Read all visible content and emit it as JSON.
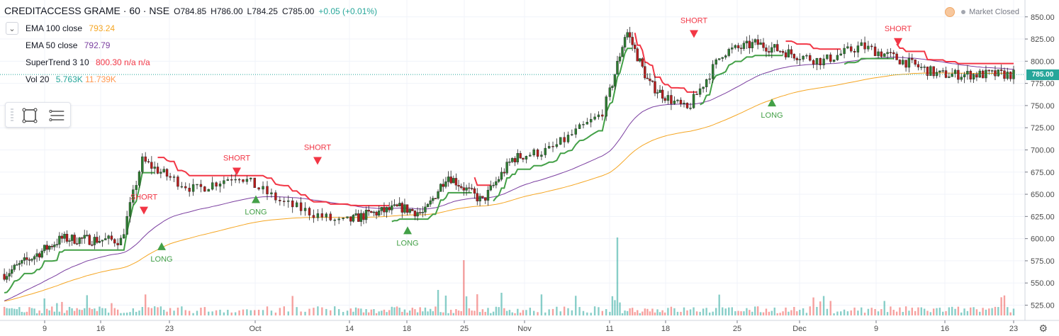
{
  "header": {
    "symbol": "CREDITACCESS GRAME · 60 · NSE",
    "open": "O784.85",
    "high": "H786.00",
    "low": "L784.25",
    "close": "C785.00",
    "change": "+0.05 (+0.01%)"
  },
  "indicators": [
    {
      "name": "EMA 100 close",
      "values": [
        "793.24"
      ],
      "colors": [
        "#f5a623"
      ]
    },
    {
      "name": "EMA 50 close",
      "values": [
        "792.79"
      ],
      "colors": [
        "#7b3fa0"
      ]
    },
    {
      "name": "SuperTrend 3 10",
      "values": [
        "800.30",
        "n/a",
        "n/a"
      ],
      "colors": [
        "#f23645",
        "#f23645",
        "#f23645"
      ]
    },
    {
      "name": "Vol 20",
      "values": [
        "5.763K",
        "11.739K"
      ],
      "colors": [
        "#26a69a",
        "#ff9850"
      ]
    }
  ],
  "market_status": "Market Closed",
  "last_price": "785.00",
  "toolbar": {
    "icons": [
      "drag-handle-icon",
      "rectangle-tool-icon",
      "lines-tool-icon"
    ]
  },
  "colors": {
    "up": "#26a69a",
    "down": "#ef5350",
    "st_up": "#43a047",
    "st_down": "#f23645",
    "ema100": "#f5a623",
    "ema50": "#7b3fa0",
    "grid": "#f0f3fa"
  },
  "chart_data": {
    "type": "candlestick",
    "y_axis": {
      "ticks": [
        525,
        550,
        575,
        600,
        625,
        650,
        675,
        700,
        725,
        750,
        775,
        800,
        825,
        850
      ],
      "range": [
        515,
        857
      ]
    },
    "x_axis": {
      "ticks": [
        "9",
        "16",
        "23",
        "Oct",
        "14",
        "18",
        "25",
        "Nov",
        "11",
        "18",
        "25",
        "Dec",
        "9",
        "16",
        "23"
      ]
    },
    "signals": [
      {
        "label": "SHORT",
        "x_tick": 2,
        "price": 628
      },
      {
        "label": "LONG",
        "x_tick": 2,
        "price": 595
      },
      {
        "label": "SHORT",
        "x_tick": 3,
        "price": 672
      },
      {
        "label": "LONG",
        "x_tick": 3,
        "price": 648
      },
      {
        "label": "SHORT",
        "x_tick": 4,
        "price": 684
      },
      {
        "label": "LONG",
        "x_tick": 5,
        "price": 613
      },
      {
        "label": "SHORT",
        "x_tick": 9,
        "price": 827
      },
      {
        "label": "LONG",
        "x_tick": 10,
        "price": 757
      },
      {
        "label": "SHORT",
        "x_tick": 12,
        "price": 818
      }
    ],
    "series_anchor": [
      [
        0,
        560
      ],
      [
        1,
        600
      ],
      [
        2,
        598
      ],
      [
        2.3,
        688
      ],
      [
        3,
        655
      ],
      [
        3.5,
        672
      ],
      [
        4,
        640
      ],
      [
        4.6,
        618
      ],
      [
        5,
        627
      ],
      [
        5.6,
        635
      ],
      [
        6,
        628
      ],
      [
        6.4,
        672
      ],
      [
        7,
        642
      ],
      [
        7.5,
        690
      ],
      [
        8,
        700
      ],
      [
        8.6,
        740
      ],
      [
        9,
        835
      ],
      [
        9.4,
        775
      ],
      [
        10,
        745
      ],
      [
        10.5,
        810
      ],
      [
        11,
        820
      ],
      [
        12,
        800
      ],
      [
        12.5,
        817
      ],
      [
        13,
        803
      ],
      [
        13.6,
        785
      ],
      [
        14,
        785
      ]
    ]
  }
}
